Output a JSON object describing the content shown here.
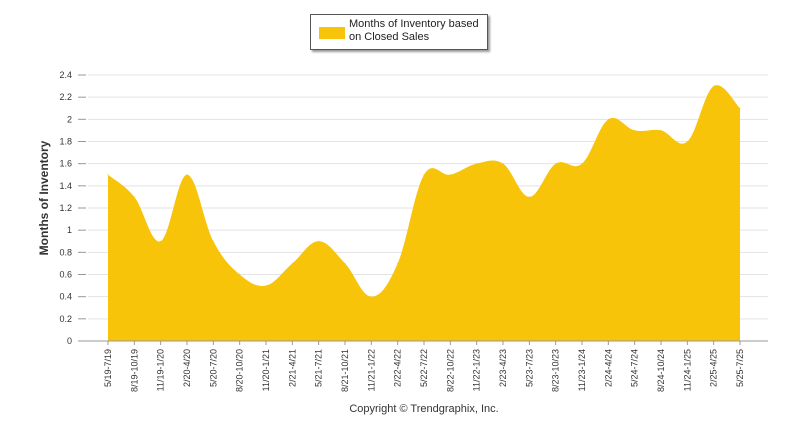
{
  "chart_data": {
    "type": "area",
    "title": "",
    "xlabel": "",
    "ylabel": "Months of Inventory",
    "ylim": [
      0,
      2.4
    ],
    "yticks": [
      0,
      0.2,
      0.4,
      0.6,
      0.8,
      1,
      1.2,
      1.4,
      1.6,
      1.8,
      2,
      2.2,
      2.4
    ],
    "ytick_labels": [
      "0",
      "0.2",
      "0.4",
      "0.6",
      "0.8",
      "1",
      "1.2",
      "1.4",
      "1.6",
      "1.8",
      "2",
      "2.2",
      "2.4"
    ],
    "grid": true,
    "legend_position": "top-center",
    "categories": [
      "5/19-7/19",
      "8/19-10/19",
      "11/19-1/20",
      "2/20-4/20",
      "5/20-7/20",
      "8/20-10/20",
      "11/20-1/21",
      "2/21-4/21",
      "5/21-7/21",
      "8/21-10/21",
      "11/21-1/22",
      "2/22-4/22",
      "5/22-7/22",
      "8/22-10/22",
      "11/22-1/23",
      "2/23-4/23",
      "5/23-7/23",
      "8/23-10/23",
      "11/23-1/24",
      "2/24-4/24",
      "5/24-7/24",
      "8/24-10/24",
      "11/24-1/25",
      "2/25-4/25",
      "5/25-7/25"
    ],
    "series": [
      {
        "name": "Months of Inventory based on Closed Sales",
        "color": "#f8c40a",
        "values": [
          1.5,
          1.3,
          0.9,
          1.5,
          0.9,
          0.6,
          0.5,
          0.7,
          0.9,
          0.7,
          0.4,
          0.7,
          1.5,
          1.5,
          1.6,
          1.6,
          1.3,
          1.6,
          1.6,
          2.0,
          1.9,
          1.9,
          1.8,
          2.3,
          2.1
        ]
      }
    ]
  },
  "legend": {
    "label": "Months of Inventory based on Closed Sales"
  },
  "footer": {
    "copyright": "Copyright © Trendgraphix, Inc."
  }
}
